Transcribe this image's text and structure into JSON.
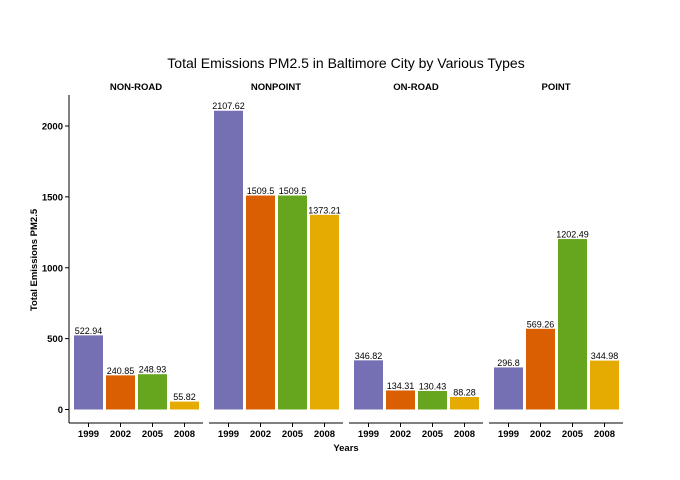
{
  "chart_data": {
    "type": "bar",
    "title": "Total Emissions PM2.5 in Baltimore City by Various Types",
    "xlabel": "Years",
    "ylabel": "Total Emissions PM2.5",
    "ylim": [
      0,
      2200
    ],
    "yticks": [
      "0",
      "500",
      "1000",
      "1500",
      "2000"
    ],
    "categories": [
      "1999",
      "2002",
      "2005",
      "2008"
    ],
    "colors": [
      "#7570b3",
      "#d95f02",
      "#66a61e",
      "#e6ab02"
    ],
    "grid": false,
    "legend": "none",
    "panels": [
      {
        "name": "NON-ROAD",
        "values": [
          522.94,
          240.85,
          248.93,
          55.82
        ],
        "labels": [
          "522.94",
          "240.85",
          "248.93",
          "55.82"
        ]
      },
      {
        "name": "NONPOINT",
        "values": [
          2107.62,
          1509.5,
          1509.5,
          1373.21
        ],
        "labels": [
          "2107.62",
          "1509.5",
          "1509.5",
          "1373.21"
        ]
      },
      {
        "name": "ON-ROAD",
        "values": [
          346.82,
          134.31,
          130.43,
          88.28
        ],
        "labels": [
          "346.82",
          "134.31",
          "130.43",
          "88.28"
        ]
      },
      {
        "name": "POINT",
        "values": [
          296.8,
          569.26,
          1202.49,
          344.98
        ],
        "labels": [
          "296.8",
          "569.26",
          "1202.49",
          "344.98"
        ]
      }
    ]
  }
}
